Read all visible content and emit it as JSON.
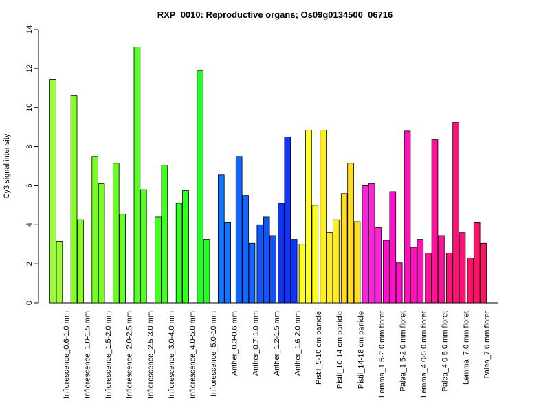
{
  "chart_data": {
    "type": "bar",
    "title": "RXP_0010: Reproductive organs; Os09g0134500_06716",
    "xlabel": "",
    "ylabel": "Cy3 signal intensity",
    "ylim": [
      0,
      14
    ],
    "yticks": [
      0,
      2,
      4,
      6,
      8,
      10,
      12,
      14
    ],
    "grid": false,
    "legend": "none",
    "groups": [
      {
        "label": "Inflorescence_0.6-1.0 mm",
        "values": [
          11.45,
          3.15
        ],
        "color": "#99ff33"
      },
      {
        "label": "Inflorescence_1.0-1.5 mm",
        "values": [
          10.6,
          4.25
        ],
        "color": "#88ff22"
      },
      {
        "label": "Inflorescence_1.5-2.0 mm",
        "values": [
          7.5,
          6.1
        ],
        "color": "#77ff22"
      },
      {
        "label": "Inflorescence_2.0-2.5 mm",
        "values": [
          7.15,
          4.55
        ],
        "color": "#66ff22"
      },
      {
        "label": "Inflorescence_2.5-3.0 mm",
        "values": [
          13.1,
          5.8
        ],
        "color": "#55ff22"
      },
      {
        "label": "Inflorescence_3.0-4.0 mm",
        "values": [
          4.4,
          7.05
        ],
        "color": "#44ff22"
      },
      {
        "label": "Inflorescence_4.0-5.0 mm",
        "values": [
          5.1,
          5.75
        ],
        "color": "#33ff22"
      },
      {
        "label": "Inflorescence_5.0-10 mm",
        "values": [
          11.9,
          3.25
        ],
        "color": "#22ff22"
      },
      {
        "label": "Anther_0.3-0.6 mm",
        "values": [
          6.55,
          4.1
        ],
        "color": "#1177ff"
      },
      {
        "label": "Anther_0.7-1.0 mm",
        "values": [
          7.5,
          5.5,
          3.05
        ],
        "color": "#1166ff"
      },
      {
        "label": "Anther_1.2-1.5 mm",
        "values": [
          4.0,
          4.4,
          3.45
        ],
        "color": "#1155ff"
      },
      {
        "label": "Anther_1.6-2.0 mm",
        "values": [
          5.1,
          8.5,
          3.25
        ],
        "color": "#1133ff"
      },
      {
        "label": "Pistil_5-10 cm panicle",
        "values": [
          3.0,
          8.85,
          5.0
        ],
        "color": "#ffff22"
      },
      {
        "label": "Pistil_10-14 cm panicle",
        "values": [
          8.85,
          3.6,
          4.25
        ],
        "color": "#ffee22"
      },
      {
        "label": "Pistil_14-18 cm panicle",
        "values": [
          5.6,
          7.15,
          4.15
        ],
        "color": "#ffdd22"
      },
      {
        "label": "Lemma_1.5-2.0 mm floret",
        "values": [
          6.0,
          6.1,
          3.85
        ],
        "color": "#ff22dd"
      },
      {
        "label": "Palea_1.5-2.0 mm floret",
        "values": [
          3.2,
          5.7,
          2.05
        ],
        "color": "#ff11cc"
      },
      {
        "label": "Lemma_4.0-5.0 mm floret",
        "values": [
          8.8,
          2.85,
          3.25
        ],
        "color": "#ff11bb"
      },
      {
        "label": "Palea_4.0-5.0 mm floret",
        "values": [
          2.55,
          8.35,
          3.45
        ],
        "color": "#ff1199"
      },
      {
        "label": "Lemma_7.0 mm floret",
        "values": [
          2.55,
          9.25,
          3.6
        ],
        "color": "#ff1177"
      },
      {
        "label": "Palea_7.0 mm floret",
        "values": [
          2.3,
          4.1,
          3.05
        ],
        "color": "#ff1166"
      }
    ]
  }
}
